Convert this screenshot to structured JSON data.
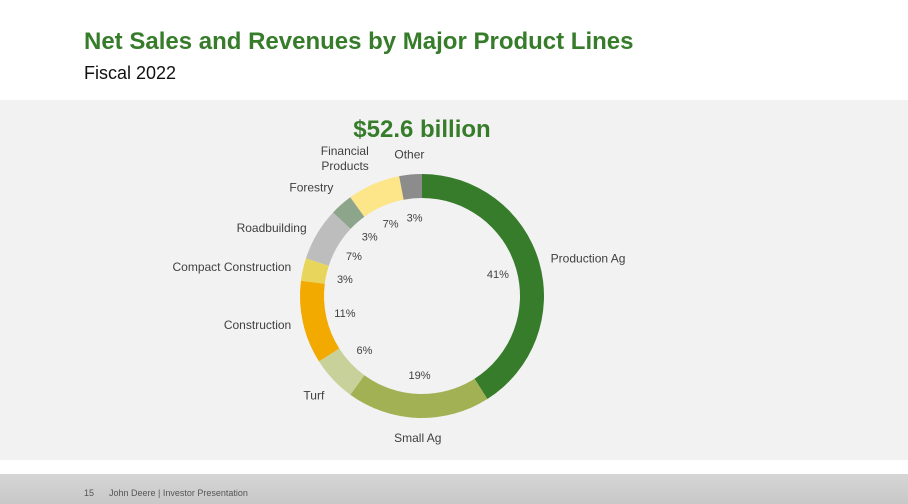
{
  "header": {
    "title": "Net Sales and Revenues by Major Product Lines",
    "subtitle": "Fiscal 2022"
  },
  "footer": {
    "page_number": "15",
    "text": "John Deere | Investor Presentation"
  },
  "chart_data": {
    "type": "pie",
    "style": "donut",
    "total_label": "$52.6 billion",
    "start": "top, clockwise",
    "slices": [
      {
        "name": "Production Ag",
        "value": 41,
        "pct_label": "41%",
        "color": "#367c2b"
      },
      {
        "name": "Small Ag",
        "value": 19,
        "pct_label": "19%",
        "color": "#a2b154"
      },
      {
        "name": "Turf",
        "value": 6,
        "pct_label": "6%",
        "color": "#c8d19a"
      },
      {
        "name": "Construction",
        "value": 11,
        "pct_label": "11%",
        "color": "#f2a900"
      },
      {
        "name": "Compact Construction",
        "value": 3,
        "pct_label": "3%",
        "color": "#e7d55c"
      },
      {
        "name": "Roadbuilding",
        "value": 7,
        "pct_label": "7%",
        "color": "#bdbdbd"
      },
      {
        "name": "Forestry",
        "value": 3,
        "pct_label": "3%",
        "color": "#8da58a"
      },
      {
        "name": "Financial Products",
        "value": 7,
        "pct_label": "7%",
        "color": "#fde58a"
      },
      {
        "name": "Other",
        "value": 3,
        "pct_label": "3%",
        "color": "#8c8c8c"
      }
    ]
  }
}
